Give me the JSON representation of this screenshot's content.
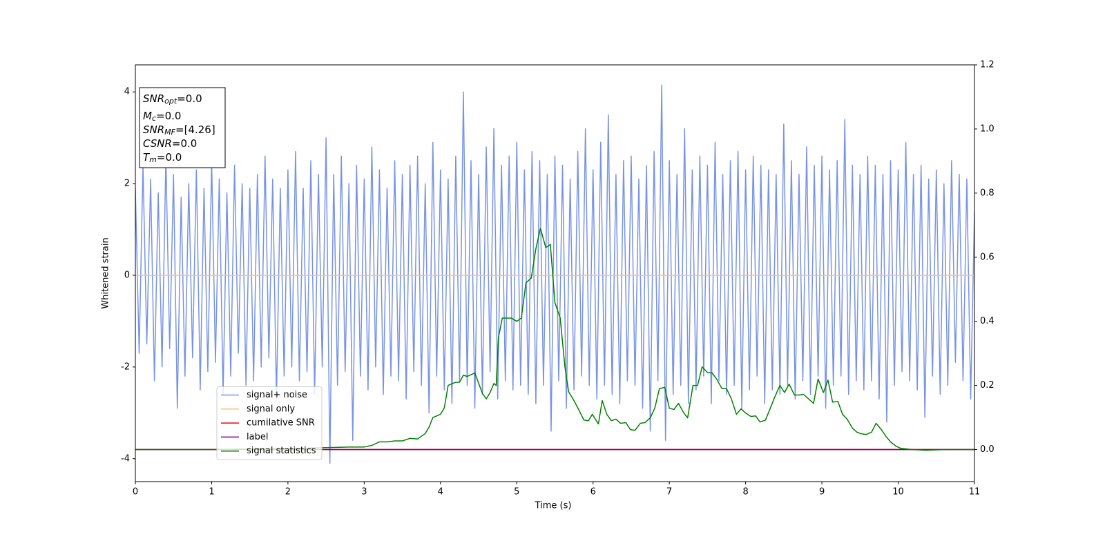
{
  "chart_data": {
    "type": "line",
    "xlabel": "Time (s)",
    "ylabel": "Whitened strain",
    "xlim": [
      0,
      11
    ],
    "ylim": [
      -4.5,
      4.59
    ],
    "y2lim": [
      -0.1,
      1.2
    ],
    "xticks": [
      0,
      1,
      2,
      3,
      4,
      5,
      6,
      7,
      8,
      9,
      10,
      11
    ],
    "yticks": [
      -4,
      -2,
      0,
      2,
      4
    ],
    "y2ticks": [
      {
        "value": 0,
        "label": "0.0"
      },
      0.2,
      0.4,
      0.6,
      0.8,
      {
        "value": 1,
        "label": "1.0"
      },
      1.2
    ],
    "legend": "lower left",
    "textbox": [
      {
        "symbol": "SNR",
        "sub": "opt",
        "text": "=0.0"
      },
      {
        "symbol": "M",
        "sub": "c",
        "text": "=0.0"
      },
      {
        "symbol": "SNR",
        "sub": "MF",
        "text": "=[4.26]"
      },
      {
        "symbol": "CSNR",
        "text": "=0.0"
      },
      {
        "symbol": "T",
        "sub": "m",
        "text": "=0.0"
      }
    ],
    "series": [
      {
        "name": "signal+ noise",
        "color": "#7893e6",
        "x": [
          0,
          0.05,
          0.1,
          0.15,
          0.2,
          0.25,
          0.3,
          0.35,
          0.4,
          0.45,
          0.5,
          0.55,
          0.6,
          0.65,
          0.7,
          0.75,
          0.8,
          0.85,
          0.9,
          0.95,
          1,
          1.05,
          1.1,
          1.15,
          1.2,
          1.25,
          1.3,
          1.35,
          1.4,
          1.45,
          1.5,
          1.55,
          1.6,
          1.65,
          1.7,
          1.75,
          1.8,
          1.85,
          1.9,
          1.95,
          2,
          2.05,
          2.1,
          2.15,
          2.2,
          2.25,
          2.3,
          2.35,
          2.4,
          2.45,
          2.5,
          2.55,
          2.6,
          2.65,
          2.7,
          2.75,
          2.8,
          2.85,
          2.9,
          2.95,
          3,
          3.05,
          3.1,
          3.15,
          3.2,
          3.25,
          3.3,
          3.35,
          3.4,
          3.45,
          3.5,
          3.55,
          3.6,
          3.65,
          3.7,
          3.75,
          3.8,
          3.85,
          3.9,
          3.95,
          4,
          4.05,
          4.1,
          4.15,
          4.2,
          4.25,
          4.3,
          4.35,
          4.4,
          4.45,
          4.5,
          4.55,
          4.6,
          4.65,
          4.7,
          4.75,
          4.8,
          4.85,
          4.9,
          4.95,
          5,
          5.05,
          5.1,
          5.15,
          5.2,
          5.25,
          5.3,
          5.35,
          5.4,
          5.45,
          5.5,
          5.55,
          5.6,
          5.65,
          5.7,
          5.75,
          5.8,
          5.85,
          5.9,
          5.95,
          6,
          6.05,
          6.1,
          6.15,
          6.2,
          6.25,
          6.3,
          6.35,
          6.4,
          6.45,
          6.5,
          6.55,
          6.6,
          6.65,
          6.7,
          6.75,
          6.8,
          6.85,
          6.9,
          6.95,
          7,
          7.05,
          7.1,
          7.15,
          7.2,
          7.25,
          7.3,
          7.35,
          7.4,
          7.45,
          7.5,
          7.55,
          7.6,
          7.65,
          7.7,
          7.75,
          7.8,
          7.85,
          7.9,
          7.95,
          8,
          8.05,
          8.1,
          8.15,
          8.2,
          8.25,
          8.3,
          8.35,
          8.4,
          8.45,
          8.5,
          8.55,
          8.6,
          8.65,
          8.7,
          8.75,
          8.8,
          8.85,
          8.9,
          8.95,
          9,
          9.05,
          9.1,
          9.15,
          9.2,
          9.25,
          9.3,
          9.35,
          9.4,
          9.45,
          9.5,
          9.55,
          9.6,
          9.65,
          9.7,
          9.75,
          9.8,
          9.85,
          9.9,
          9.95,
          10,
          10.05,
          10.1,
          10.15,
          10.2,
          10.25,
          10.3,
          10.35,
          10.4,
          10.45,
          10.5,
          10.55,
          10.6,
          10.65,
          10.7,
          10.75,
          10.8,
          10.85,
          10.9,
          10.95,
          11
        ],
        "values": [
          1.9,
          -1.7,
          2.4,
          -1.5,
          2.1,
          -2.3,
          1.8,
          -2.0,
          2.6,
          -1.6,
          2.2,
          -2.9,
          1.7,
          -2.2,
          2.0,
          -1.8,
          2.3,
          -2.5,
          1.9,
          -2.1,
          2.5,
          -1.9,
          2.1,
          -2.6,
          1.8,
          -2.2,
          2.4,
          -1.7,
          2.0,
          -2.4,
          1.9,
          -2.3,
          2.2,
          -2.0,
          2.6,
          -1.8,
          2.1,
          -2.7,
          1.9,
          -2.2,
          2.3,
          -2.0,
          2.7,
          -2.3,
          1.9,
          -2.1,
          2.5,
          -2.6,
          2.2,
          -2.0,
          3.0,
          -4.1,
          2.2,
          -2.4,
          2.6,
          -2.1,
          2.0,
          -3.6,
          2.4,
          -2.2,
          2.1,
          -2.5,
          2.8,
          -2.0,
          2.3,
          -2.6,
          1.9,
          -2.2,
          2.5,
          -2.3,
          2.2,
          -2.7,
          2.4,
          -2.1,
          2.6,
          -2.4,
          2.0,
          -3.0,
          2.9,
          -2.2,
          2.3,
          -2.5,
          2.1,
          -2.8,
          2.6,
          -2.3,
          4.0,
          -2.4,
          2.5,
          -2.9,
          2.2,
          -2.6,
          2.8,
          -2.1,
          3.2,
          -2.7,
          2.4,
          -2.3,
          2.6,
          -2.5,
          2.9,
          -2.4,
          2.3,
          -2.6,
          2.7,
          -2.8,
          2.5,
          -2.4,
          2.2,
          -3.4,
          2.6,
          -2.3,
          2.4,
          -2.9,
          2.1,
          -2.5,
          2.7,
          -2.2,
          3.2,
          -2.4,
          2.3,
          -2.7,
          2.9,
          -2.4,
          3.5,
          -2.6,
          2.2,
          -2.8,
          2.5,
          -2.3,
          2.6,
          -2.4,
          2.1,
          -2.9,
          2.4,
          -3.4,
          2.7,
          -2.3,
          4.15,
          -3.6,
          2.5,
          -2.6,
          2.2,
          -2.4,
          3.2,
          -2.8,
          2.3,
          -2.5,
          2.6,
          -2.2,
          2.4,
          -2.8,
          2.9,
          -2.3,
          2.2,
          -2.6,
          2.5,
          -2.4,
          2.7,
          -2.9,
          2.3,
          -2.5,
          2.6,
          -2.2,
          2.4,
          -2.8,
          2.3,
          -2.5,
          2.2,
          -2.6,
          3.3,
          -2.4,
          2.5,
          -2.7,
          2.2,
          -2.3,
          2.8,
          -2.6,
          2.4,
          -2.2,
          2.6,
          -2.9,
          2.3,
          -2.4,
          2.5,
          -2.2,
          3.4,
          -2.6,
          2.4,
          -2.3,
          2.2,
          -2.5,
          2.6,
          -2.3,
          2.4,
          -2.7,
          2.2,
          -3.2,
          2.5,
          -2.4,
          2.3,
          -2.1,
          2.9,
          -2.3,
          2.2,
          -2.5,
          2.4,
          -3.1,
          2.1,
          -2.2,
          2.3,
          -2.6,
          2.0,
          -2.4,
          2.5,
          -1.9,
          2.2,
          -2.3,
          2.1,
          -2.7,
          1.4
        ]
      },
      {
        "name": "signal only",
        "color": "#f5c27f",
        "x": [
          0,
          11
        ],
        "values": [
          0,
          0
        ]
      },
      {
        "name": "cumilative SNR",
        "color": "#ff0000",
        "axis": "y2",
        "x": [
          0,
          11
        ],
        "values": [
          0,
          0
        ]
      },
      {
        "name": "label",
        "color": "#800080",
        "axis": "y2",
        "x": [
          0,
          11
        ],
        "values": [
          0,
          0
        ]
      },
      {
        "name": "signal statistics",
        "color": "#008000",
        "axis": "y2",
        "x": [
          0,
          0.5,
          1,
          1.5,
          2,
          2.5,
          2.8,
          3,
          3.1,
          3.2,
          3.3,
          3.4,
          3.5,
          3.6,
          3.7,
          3.8,
          3.85,
          3.9,
          4,
          4.05,
          4.1,
          4.2,
          4.25,
          4.3,
          4.35,
          4.45,
          4.55,
          4.6,
          4.65,
          4.7,
          4.73,
          4.76,
          4.81,
          4.93,
          5,
          5.06,
          5.12,
          5.19,
          5.25,
          5.31,
          5.38,
          5.44,
          5.5,
          5.57,
          5.63,
          5.68,
          5.74,
          5.8,
          5.88,
          5.94,
          5.99,
          6.07,
          6.12,
          6.18,
          6.24,
          6.3,
          6.36,
          6.43,
          6.49,
          6.55,
          6.62,
          6.68,
          6.75,
          6.81,
          6.87,
          6.94,
          7,
          7.06,
          7.12,
          7.19,
          7.24,
          7.31,
          7.37,
          7.43,
          7.5,
          7.56,
          7.62,
          7.69,
          7.75,
          7.81,
          7.88,
          7.94,
          8,
          8.07,
          8.13,
          8.19,
          8.26,
          8.32,
          8.38,
          8.45,
          8.51,
          8.57,
          8.64,
          8.7,
          8.76,
          8.83,
          8.89,
          8.95,
          9.02,
          9.08,
          9.14,
          9.21,
          9.27,
          9.33,
          9.4,
          9.46,
          9.52,
          9.58,
          9.65,
          9.71,
          9.78,
          9.84,
          9.9,
          9.97,
          10.03,
          10.18,
          10.36,
          10.63,
          11
        ],
        "values": [
          0,
          0,
          0,
          0.002,
          0.003,
          0.006,
          0.008,
          0.008,
          0.013,
          0.024,
          0.024,
          0.027,
          0.027,
          0.035,
          0.033,
          0.05,
          0.07,
          0.1,
          0.11,
          0.13,
          0.2,
          0.21,
          0.21,
          0.232,
          0.228,
          0.239,
          0.175,
          0.158,
          0.178,
          0.206,
          0.2,
          0.35,
          0.41,
          0.41,
          0.4,
          0.41,
          0.52,
          0.535,
          0.626,
          0.69,
          0.63,
          0.64,
          0.458,
          0.41,
          0.26,
          0.18,
          0.157,
          0.13,
          0.092,
          0.09,
          0.11,
          0.08,
          0.153,
          0.11,
          0.09,
          0.095,
          0.082,
          0.084,
          0.062,
          0.06,
          0.082,
          0.084,
          0.099,
          0.13,
          0.19,
          0.194,
          0.129,
          0.125,
          0.144,
          0.114,
          0.099,
          0.2,
          0.2,
          0.258,
          0.24,
          0.239,
          0.22,
          0.19,
          0.19,
          0.16,
          0.11,
          0.127,
          0.114,
          0.103,
          0.105,
          0.086,
          0.092,
          0.127,
          0.163,
          0.2,
          0.178,
          0.204,
          0.17,
          0.17,
          0.172,
          0.157,
          0.144,
          0.22,
          0.178,
          0.217,
          0.148,
          0.15,
          0.11,
          0.095,
          0.067,
          0.054,
          0.049,
          0.047,
          0.054,
          0.082,
          0.062,
          0.041,
          0.024,
          0.011,
          0.004,
          0,
          -0.002,
          0,
          0
        ]
      }
    ]
  }
}
